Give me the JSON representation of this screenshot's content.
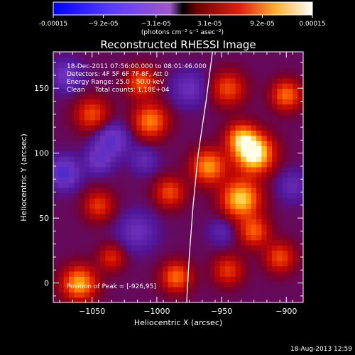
{
  "colorbar": {
    "tick_labels": [
      "-0.00015",
      "−9.2e-05",
      "−3.1e-05",
      "3.1e-05",
      "9.2e-05",
      "0.00015"
    ],
    "tick_values": [
      -0.00015,
      -9.2e-05,
      -3.1e-05,
      3.1e-05,
      9.2e-05,
      0.00015
    ],
    "range": [
      -0.00015,
      0.00015
    ],
    "unit_label": "(photons cm⁻² s⁻¹ asec⁻²)"
  },
  "footer": {
    "timestamp": "18-Aug-2013 12:59"
  },
  "chart_data": {
    "type": "heatmap",
    "title": "Reconstructed RHESSI Image",
    "xlabel": "Heliocentric X (arcsec)",
    "ylabel": "Heliocentric Y (arcsec)",
    "xlim": [
      -1080,
      -887
    ],
    "ylim": [
      -15,
      178
    ],
    "x_ticks": [
      -1050,
      -1000,
      -950,
      -900
    ],
    "x_tick_labels": [
      "−1050",
      "−1000",
      "−950",
      "−900"
    ],
    "y_ticks": [
      0,
      50,
      100,
      150
    ],
    "y_tick_labels": [
      "0",
      "50",
      "100",
      "150"
    ],
    "annotations": [
      "18-Dec-2011 07:56:00.000 to 08:01:46.000",
      "Detectors: 4F 5F 6F 7F 8F, Att 0",
      "Energy Range: 25.0 - 50.0 keV",
      "Clean     Total counts: 1.18E+04"
    ],
    "peak_label": "Position of Peak = [-926,95]",
    "peak_position": [
      -926,
      95
    ],
    "limb_curve": [
      [
        -957,
        178
      ],
      [
        -962,
        140
      ],
      [
        -968,
        100
      ],
      [
        -972,
        60
      ],
      [
        -975,
        20
      ],
      [
        -977,
        -15
      ]
    ],
    "blobs": [
      {
        "x": -925,
        "y": 100,
        "sigma": 10,
        "amp": 1.0
      },
      {
        "x": -935,
        "y": 112,
        "sigma": 8,
        "amp": 0.6
      },
      {
        "x": -935,
        "y": 65,
        "sigma": 10,
        "amp": 0.8
      },
      {
        "x": -925,
        "y": 40,
        "sigma": 8,
        "amp": 0.5
      },
      {
        "x": -960,
        "y": 90,
        "sigma": 9,
        "amp": 0.65
      },
      {
        "x": -945,
        "y": 150,
        "sigma": 9,
        "amp": 0.45
      },
      {
        "x": -900,
        "y": 145,
        "sigma": 8,
        "amp": 0.55
      },
      {
        "x": -1005,
        "y": 125,
        "sigma": 9,
        "amp": 0.6
      },
      {
        "x": -1012,
        "y": 155,
        "sigma": 8,
        "amp": 0.5
      },
      {
        "x": -1050,
        "y": 130,
        "sigma": 9,
        "amp": 0.45
      },
      {
        "x": -1045,
        "y": 60,
        "sigma": 8,
        "amp": 0.4
      },
      {
        "x": -1060,
        "y": 0,
        "sigma": 9,
        "amp": 0.7
      },
      {
        "x": -1035,
        "y": 20,
        "sigma": 7,
        "amp": 0.35
      },
      {
        "x": -990,
        "y": 70,
        "sigma": 8,
        "amp": 0.45
      },
      {
        "x": -985,
        "y": 5,
        "sigma": 8,
        "amp": 0.55
      },
      {
        "x": -945,
        "y": 10,
        "sigma": 8,
        "amp": 0.4
      },
      {
        "x": -905,
        "y": 20,
        "sigma": 8,
        "amp": 0.45
      },
      {
        "x": -1070,
        "y": 160,
        "sigma": 8,
        "amp": -0.35
      },
      {
        "x": -1072,
        "y": 85,
        "sigma": 8,
        "amp": -0.55
      },
      {
        "x": -1035,
        "y": 110,
        "sigma": 9,
        "amp": -0.45
      },
      {
        "x": -1045,
        "y": 95,
        "sigma": 7,
        "amp": -0.35
      },
      {
        "x": -975,
        "y": 150,
        "sigma": 9,
        "amp": -0.3
      },
      {
        "x": -1015,
        "y": 40,
        "sigma": 10,
        "amp": -0.3
      },
      {
        "x": -950,
        "y": 40,
        "sigma": 7,
        "amp": -0.2
      },
      {
        "x": -895,
        "y": 75,
        "sigma": 8,
        "amp": -0.25
      },
      {
        "x": -1010,
        "y": 95,
        "sigma": 7,
        "amp": -0.25
      }
    ]
  }
}
